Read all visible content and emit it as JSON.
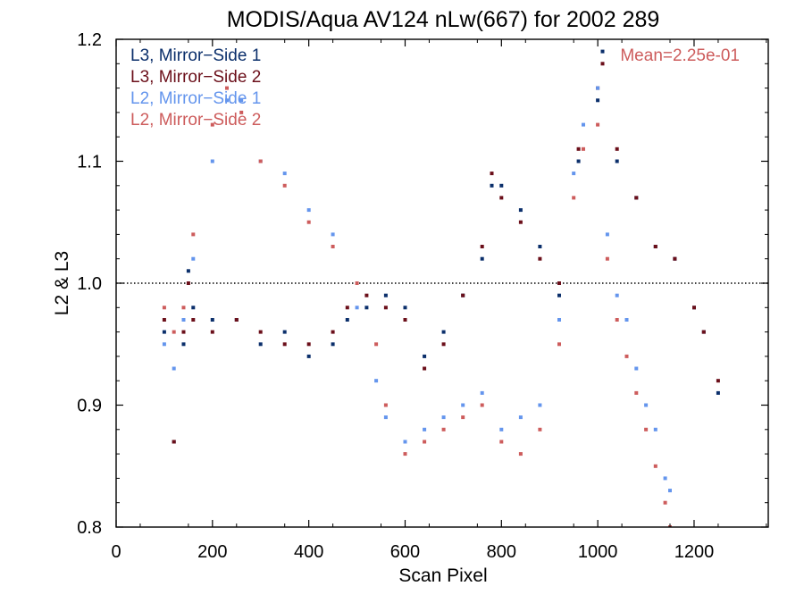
{
  "chart_data": {
    "type": "scatter",
    "title": "MODIS/Aqua AV124 nLw(667) for 2002 289",
    "xlabel": "Scan Pixel",
    "ylabel": "L2 & L3",
    "xlim": [
      0,
      1354
    ],
    "ylim": [
      0.8,
      1.2
    ],
    "x_ticks": [
      "0",
      "200",
      "400",
      "600",
      "800",
      "1000",
      "1200"
    ],
    "y_ticks": [
      "0.8",
      "0.9",
      "1.0",
      "1.1",
      "1.2"
    ],
    "reference_line": 1.0,
    "annotation": "Mean=2.25e-01",
    "annotation_color": "#cd5c5c",
    "legend_position": "top-left",
    "grid": false,
    "series": [
      {
        "name": "L3, Mirror−Side 1",
        "color": "#0b2f6b",
        "x": [
          100,
          120,
          140,
          150,
          160,
          200,
          250,
          300,
          350,
          400,
          450,
          480,
          520,
          560,
          600,
          640,
          680,
          720,
          760,
          780,
          800,
          840,
          880,
          920,
          960,
          1000,
          1010,
          1040,
          1080,
          1120,
          1160,
          1200,
          1220,
          1250
        ],
        "y": [
          0.96,
          0.87,
          0.95,
          1.01,
          0.98,
          0.97,
          0.97,
          0.95,
          0.96,
          0.94,
          0.95,
          0.97,
          0.98,
          0.99,
          0.98,
          0.94,
          0.96,
          0.99,
          1.02,
          1.08,
          1.08,
          1.06,
          1.03,
          0.99,
          1.1,
          1.15,
          1.19,
          1.1,
          1.07,
          1.03,
          1.02,
          0.98,
          0.96,
          0.91
        ]
      },
      {
        "name": "L3, Mirror−Side 2",
        "color": "#6b0f1a",
        "x": [
          100,
          120,
          140,
          150,
          160,
          200,
          250,
          300,
          350,
          400,
          450,
          480,
          520,
          560,
          600,
          640,
          680,
          720,
          760,
          780,
          800,
          840,
          880,
          920,
          960,
          1000,
          1010,
          1040,
          1080,
          1120,
          1160,
          1200,
          1220,
          1250
        ],
        "y": [
          0.97,
          0.87,
          0.96,
          1.0,
          0.97,
          0.96,
          0.97,
          0.96,
          0.95,
          0.95,
          0.96,
          0.98,
          0.99,
          0.98,
          0.97,
          0.93,
          0.95,
          0.99,
          1.03,
          1.09,
          1.07,
          1.05,
          1.02,
          1.0,
          1.11,
          1.16,
          1.18,
          1.11,
          1.07,
          1.03,
          1.02,
          0.98,
          0.96,
          0.92
        ]
      },
      {
        "name": "L2, Mirror−Side 1",
        "color": "#6495ed",
        "x": [
          100,
          120,
          140,
          160,
          200,
          230,
          260,
          300,
          350,
          400,
          450,
          500,
          540,
          560,
          600,
          640,
          680,
          720,
          760,
          800,
          840,
          880,
          920,
          950,
          970,
          1000,
          1020,
          1040,
          1060,
          1080,
          1100,
          1120,
          1140,
          1150
        ],
        "y": [
          0.95,
          0.93,
          0.97,
          1.02,
          1.1,
          1.15,
          1.15,
          1.1,
          1.09,
          1.06,
          1.04,
          0.98,
          0.92,
          0.89,
          0.87,
          0.88,
          0.89,
          0.9,
          0.91,
          0.88,
          0.89,
          0.9,
          0.97,
          1.09,
          1.13,
          1.16,
          1.04,
          0.99,
          0.97,
          0.93,
          0.9,
          0.88,
          0.84,
          0.83
        ]
      },
      {
        "name": "L2, Mirror−Side 2",
        "color": "#cd5c5c",
        "x": [
          100,
          120,
          140,
          160,
          200,
          230,
          260,
          300,
          350,
          400,
          450,
          500,
          540,
          560,
          600,
          640,
          680,
          720,
          760,
          800,
          840,
          880,
          920,
          950,
          970,
          1000,
          1020,
          1040,
          1060,
          1080,
          1100,
          1120,
          1140,
          1150
        ],
        "y": [
          0.98,
          0.96,
          0.98,
          1.04,
          1.13,
          1.16,
          1.14,
          1.1,
          1.08,
          1.05,
          1.03,
          1.0,
          0.95,
          0.9,
          0.86,
          0.87,
          0.88,
          0.89,
          0.9,
          0.87,
          0.86,
          0.88,
          0.95,
          1.07,
          1.11,
          1.13,
          1.02,
          0.97,
          0.94,
          0.91,
          0.88,
          0.85,
          0.82,
          0.8
        ]
      }
    ]
  }
}
